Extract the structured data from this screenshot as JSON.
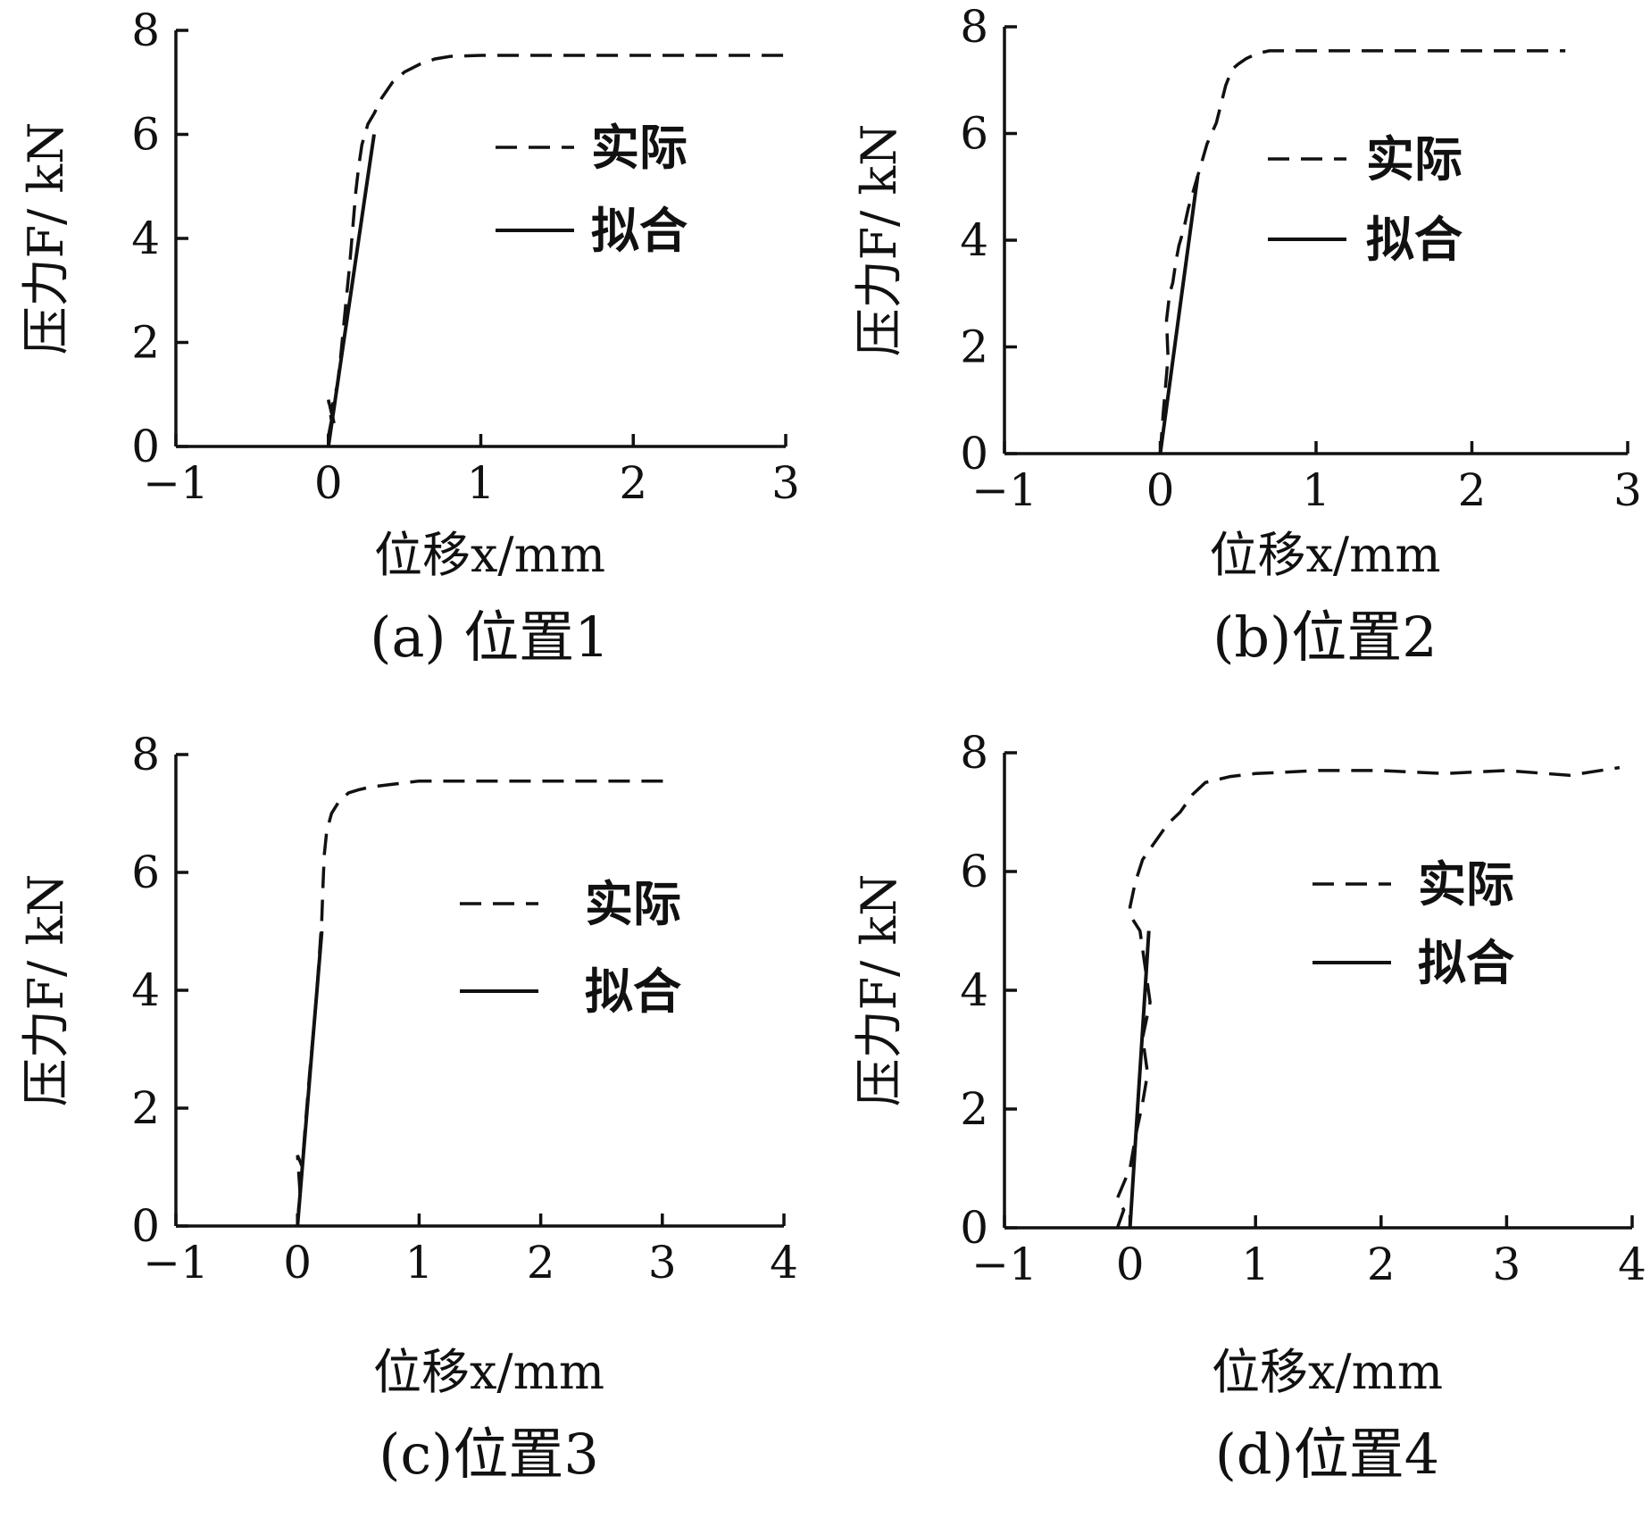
{
  "chart_data": [
    {
      "type": "line",
      "caption": "(a) 位置1",
      "xlabel": "位移x/mm",
      "ylabel": "压力F/ kN",
      "xlim": [
        -1,
        3
      ],
      "ylim": [
        0,
        8
      ],
      "xticks": [
        -1,
        0,
        1,
        2,
        3
      ],
      "yticks": [
        0,
        2,
        4,
        6,
        8
      ],
      "legend_position": "top-right",
      "series": [
        {
          "name": "实际",
          "style": "dashed",
          "x": [
            0.0,
            0.02,
            0.0,
            0.04,
            0.02,
            0.06,
            0.08,
            0.1,
            0.12,
            0.14,
            0.16,
            0.18,
            0.2,
            0.22,
            0.24,
            0.26,
            0.3,
            0.35,
            0.42,
            0.5,
            0.6,
            0.7,
            0.8,
            1.0,
            1.2,
            1.5,
            2.0,
            2.5,
            3.0
          ],
          "y": [
            0.2,
            0.5,
            0.9,
            0.4,
            0.7,
            1.2,
            1.7,
            2.3,
            2.9,
            3.5,
            4.2,
            4.9,
            5.4,
            5.8,
            6.0,
            6.2,
            6.4,
            6.7,
            7.0,
            7.2,
            7.35,
            7.45,
            7.5,
            7.52,
            7.52,
            7.52,
            7.52,
            7.52,
            7.52
          ]
        },
        {
          "name": "拟合",
          "style": "solid",
          "x": [
            0.0,
            0.05,
            0.1,
            0.15,
            0.2,
            0.25,
            0.3
          ],
          "y": [
            0.0,
            1.0,
            2.0,
            3.0,
            4.0,
            5.0,
            6.0
          ]
        }
      ],
      "legend": [
        {
          "label": "实际",
          "style": "dashed"
        },
        {
          "label": "拟合",
          "style": "solid"
        }
      ]
    },
    {
      "type": "line",
      "caption": "(b)位置2",
      "xlabel": "位移x/mm",
      "ylabel": "压力F/ kN",
      "xlim": [
        -1,
        3
      ],
      "ylim": [
        0,
        8
      ],
      "xticks": [
        -1,
        0,
        1,
        2,
        3
      ],
      "yticks": [
        0,
        2,
        4,
        6,
        8
      ],
      "legend_position": "top-right",
      "series": [
        {
          "name": "实际",
          "style": "dashed",
          "x": [
            0.0,
            0.02,
            0.05,
            0.04,
            0.06,
            0.08,
            0.1,
            0.12,
            0.15,
            0.18,
            0.22,
            0.26,
            0.3,
            0.36,
            0.42,
            0.46,
            0.5,
            0.55,
            0.62,
            0.7,
            0.8,
            1.0,
            1.5,
            2.0,
            2.6
          ],
          "y": [
            0.0,
            0.8,
            1.8,
            2.5,
            3.0,
            3.2,
            3.6,
            3.9,
            4.2,
            4.6,
            5.0,
            5.4,
            5.8,
            6.2,
            6.9,
            7.2,
            7.3,
            7.4,
            7.5,
            7.55,
            7.55,
            7.55,
            7.55,
            7.55,
            7.55
          ]
        },
        {
          "name": "拟合",
          "style": "solid",
          "x": [
            0.0,
            0.06,
            0.12,
            0.18,
            0.24
          ],
          "y": [
            0.0,
            1.3,
            2.6,
            3.9,
            5.2
          ]
        }
      ],
      "legend": [
        {
          "label": "实际",
          "style": "dashed"
        },
        {
          "label": "拟合",
          "style": "solid"
        }
      ]
    },
    {
      "type": "line",
      "caption": "(c)位置3",
      "xlabel": "位移x/mm",
      "ylabel": "压力F/ kN",
      "xlim": [
        -1,
        4
      ],
      "ylim": [
        0,
        8
      ],
      "xticks": [
        -1,
        0,
        1,
        2,
        3,
        4
      ],
      "yticks": [
        0,
        2,
        4,
        6,
        8
      ],
      "legend_position": "top-right",
      "series": [
        {
          "name": "实际",
          "style": "dashed",
          "x": [
            0.0,
            0.02,
            0.0,
            0.04,
            0.06,
            0.1,
            0.14,
            0.16,
            0.18,
            0.2,
            0.21,
            0.22,
            0.24,
            0.28,
            0.34,
            0.42,
            0.5,
            0.6,
            0.8,
            1.0,
            1.5,
            2.0,
            2.5,
            3.1
          ],
          "y": [
            0.0,
            0.6,
            1.2,
            1.0,
            1.6,
            2.6,
            3.5,
            4.0,
            4.6,
            5.2,
            5.8,
            6.3,
            6.7,
            7.0,
            7.2,
            7.35,
            7.4,
            7.45,
            7.5,
            7.55,
            7.55,
            7.55,
            7.55,
            7.55
          ]
        },
        {
          "name": "拟合",
          "style": "solid",
          "x": [
            0.0,
            0.04,
            0.08,
            0.12,
            0.16,
            0.2
          ],
          "y": [
            0.0,
            1.0,
            2.0,
            3.0,
            4.0,
            5.0
          ]
        }
      ],
      "legend": [
        {
          "label": "实际",
          "style": "dashed"
        },
        {
          "label": "拟合",
          "style": "solid"
        }
      ]
    },
    {
      "type": "line",
      "caption": "(d)位置4",
      "xlabel": "位移x/mm",
      "ylabel": "压力F/ kN",
      "xlim": [
        -1,
        4
      ],
      "ylim": [
        0,
        8
      ],
      "xticks": [
        -1,
        0,
        1,
        2,
        3,
        4
      ],
      "yticks": [
        0,
        2,
        4,
        6,
        8
      ],
      "legend_position": "top-right",
      "series": [
        {
          "name": "实际",
          "style": "dashed",
          "x": [
            -0.1,
            -0.05,
            -0.1,
            0.0,
            0.05,
            0.1,
            0.14,
            0.1,
            0.16,
            0.12,
            0.08,
            0.02,
            0.0,
            0.04,
            0.1,
            0.2,
            0.3,
            0.4,
            0.5,
            0.6,
            0.8,
            1.0,
            1.5,
            2.0,
            2.5,
            3.0,
            3.5,
            3.9
          ],
          "y": [
            0.0,
            0.3,
            0.5,
            1.0,
            1.6,
            2.1,
            2.6,
            3.2,
            3.8,
            4.4,
            5.0,
            5.2,
            5.4,
            5.8,
            6.2,
            6.5,
            6.8,
            7.0,
            7.3,
            7.5,
            7.6,
            7.65,
            7.7,
            7.7,
            7.65,
            7.7,
            7.62,
            7.75
          ]
        },
        {
          "name": "拟合",
          "style": "solid",
          "x": [
            0.0,
            0.03,
            0.06,
            0.09,
            0.12,
            0.15
          ],
          "y": [
            0.0,
            1.0,
            2.0,
            3.0,
            4.0,
            5.0
          ]
        }
      ],
      "legend": [
        {
          "label": "实际",
          "style": "dashed"
        },
        {
          "label": "拟合",
          "style": "solid"
        }
      ]
    }
  ]
}
